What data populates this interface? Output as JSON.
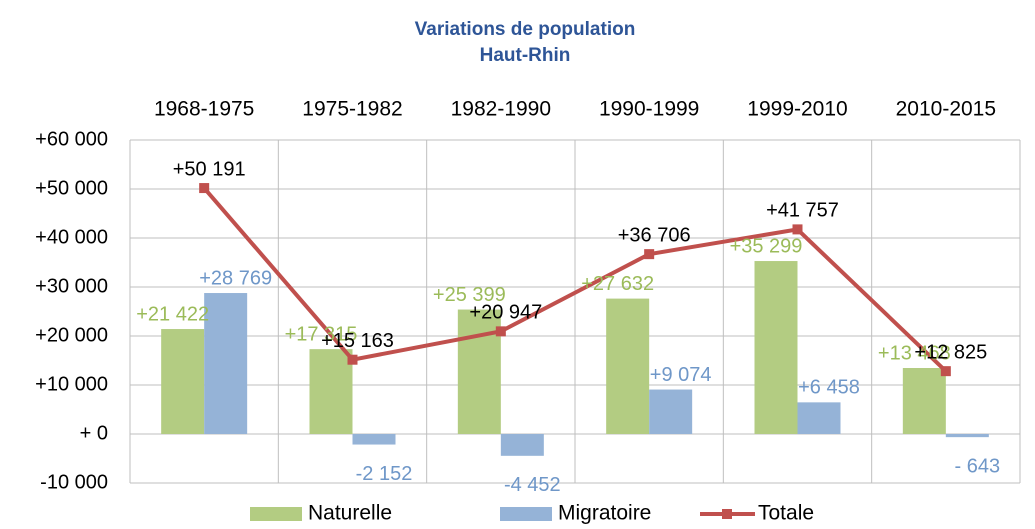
{
  "chart_data": {
    "type": "bar",
    "title": "Variations de population",
    "subtitle": "Haut-Rhin",
    "categories": [
      "1968-1975",
      "1975-1982",
      "1982-1990",
      "1990-1999",
      "1999-2010",
      "2010-2015"
    ],
    "series": [
      {
        "name": "Naturelle",
        "type": "bar",
        "color": "#b3cc82",
        "label_color": "#9bbb59",
        "values": [
          21422,
          17315,
          25399,
          27632,
          35299,
          13468
        ],
        "value_labels": [
          "+21 422",
          "+17 315",
          "+25 399",
          "+27 632",
          "+35 299",
          "+13 468"
        ]
      },
      {
        "name": "Migratoire",
        "type": "bar",
        "color": "#95b3d7",
        "label_color": "#6f97c8",
        "values": [
          28769,
          -2152,
          -4452,
          9074,
          6458,
          -643
        ],
        "value_labels": [
          "+28 769",
          "-2 152",
          "-4 452",
          "+9 074",
          "+6 458",
          "- 643"
        ]
      },
      {
        "name": "Totale",
        "type": "line",
        "color": "#c0504d",
        "label_color": "#000000",
        "values": [
          50191,
          15163,
          20947,
          36706,
          41757,
          12825
        ],
        "value_labels": [
          "+50 191",
          "+15 163",
          "+20 947",
          "+36 706",
          "+41 757",
          "+12 825"
        ]
      }
    ],
    "ylim": [
      -10000,
      60000
    ],
    "yticks": [
      {
        "value": -10000,
        "label": "-10 000"
      },
      {
        "value": 0,
        "label": "+ 0"
      },
      {
        "value": 10000,
        "label": "+10 000"
      },
      {
        "value": 20000,
        "label": "+20 000"
      },
      {
        "value": 30000,
        "label": "+30 000"
      },
      {
        "value": 40000,
        "label": "+40 000"
      },
      {
        "value": 50000,
        "label": "+50 000"
      },
      {
        "value": 60000,
        "label": "+60 000"
      }
    ],
    "grid": true,
    "legend": "bottom"
  }
}
